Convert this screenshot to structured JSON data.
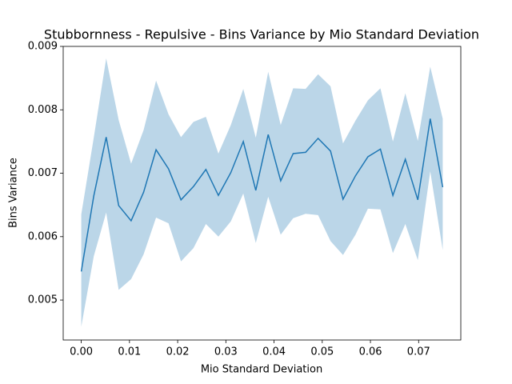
{
  "chart_data": {
    "type": "line",
    "title": "Stubbornness - Repulsive - Bins Variance by Mio Standard Deviation",
    "x_label": "Mio Standard Deviation",
    "y_label": "Bins Variance",
    "x": [
      0,
      0.00259,
      0.00517,
      0.00776,
      0.01034,
      0.01293,
      0.01552,
      0.0181,
      0.02069,
      0.02328,
      0.02586,
      0.02845,
      0.03103,
      0.03362,
      0.03621,
      0.03879,
      0.04138,
      0.04397,
      0.04655,
      0.04914,
      0.05172,
      0.05431,
      0.0569,
      0.05948,
      0.06207,
      0.06466,
      0.06724,
      0.06983,
      0.07241,
      0.075
    ],
    "series": [
      {
        "color": "#1f77b4",
        "values": [
          0.00545,
          0.00664,
          0.00757,
          0.00649,
          0.00625,
          0.0067,
          0.00737,
          0.00707,
          0.00658,
          0.00679,
          0.00706,
          0.00665,
          0.00701,
          0.0075,
          0.00673,
          0.00761,
          0.00688,
          0.00731,
          0.00733,
          0.00755,
          0.00735,
          0.00659,
          0.00696,
          0.00726,
          0.00738,
          0.00665,
          0.00722,
          0.00658,
          0.00786,
          0.00678
        ]
      }
    ],
    "band": {
      "color": "#1f77b4",
      "opacity": 0.3,
      "upper": [
        0.00635,
        0.00756,
        0.00881,
        0.00784,
        0.00715,
        0.00768,
        0.00846,
        0.00793,
        0.00757,
        0.00781,
        0.00789,
        0.00731,
        0.00776,
        0.00833,
        0.00756,
        0.0086,
        0.00776,
        0.00834,
        0.00833,
        0.00856,
        0.00837,
        0.00747,
        0.00783,
        0.00815,
        0.00834,
        0.0075,
        0.00826,
        0.00751,
        0.00868,
        0.00786
      ],
      "lower": [
        0.00458,
        0.00569,
        0.00638,
        0.00516,
        0.00533,
        0.00572,
        0.0063,
        0.00621,
        0.00561,
        0.00582,
        0.0062,
        0.006,
        0.00624,
        0.00668,
        0.0059,
        0.00663,
        0.00603,
        0.00629,
        0.00636,
        0.00634,
        0.00593,
        0.00571,
        0.00603,
        0.00644,
        0.00643,
        0.00574,
        0.0062,
        0.00563,
        0.00703,
        0.00579
      ]
    },
    "xlim": [
      -0.00375,
      0.07875
    ],
    "ylim": [
      0.00437,
      0.009
    ],
    "xticks": [
      {
        "value": 0,
        "label": "0.00"
      },
      0.01,
      0.02,
      0.03,
      0.04,
      0.05,
      0.06,
      0.07
    ],
    "yticks": [
      0.005,
      0.006,
      0.007,
      0.008,
      0.009
    ]
  }
}
